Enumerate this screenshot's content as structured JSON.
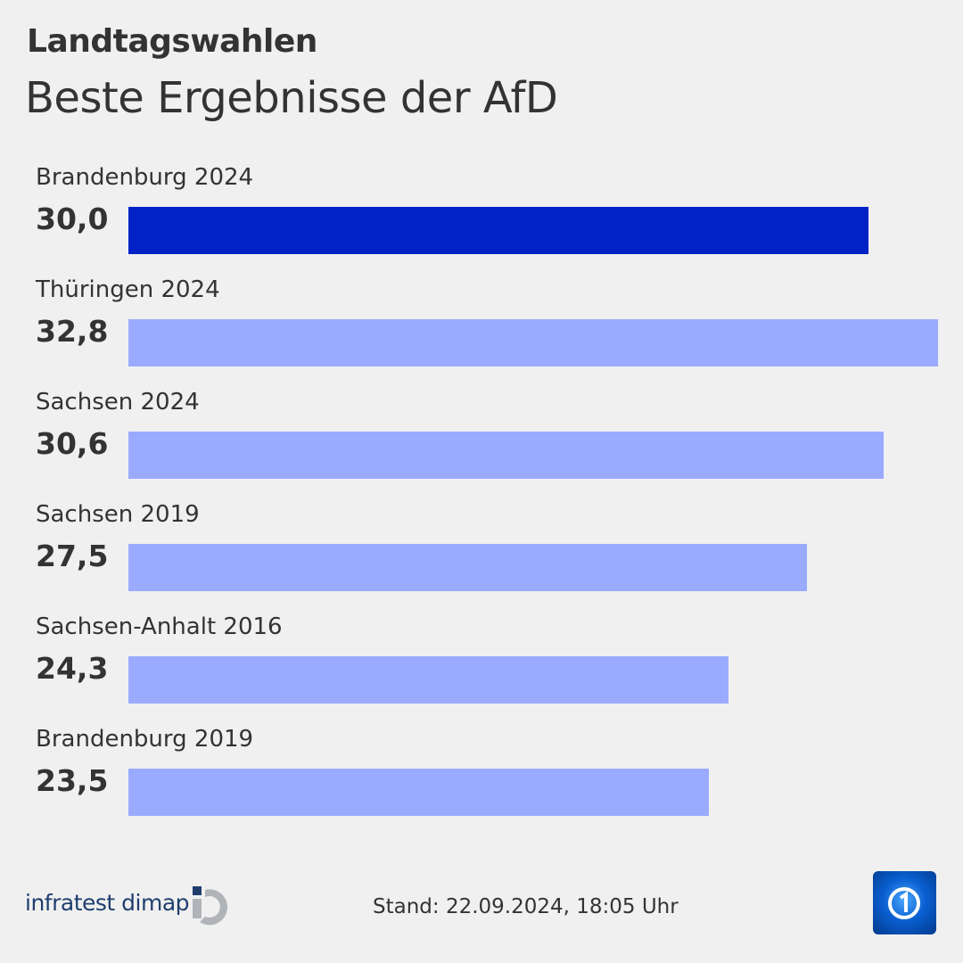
{
  "header": {
    "kicker": "Landtagswahlen",
    "title": "Beste Ergebnisse der AfD"
  },
  "chart_data": {
    "type": "bar",
    "orientation": "horizontal",
    "categories": [
      "Brandenburg 2024",
      "Thüringen 2024",
      "Sachsen 2024",
      "Sachsen 2019",
      "Sachsen-Anhalt 2016",
      "Brandenburg 2019"
    ],
    "values": [
      30.0,
      32.8,
      30.6,
      27.5,
      24.3,
      23.5
    ],
    "value_labels": [
      "30,0",
      "32,8",
      "30,6",
      "27,5",
      "24,3",
      "23,5"
    ],
    "highlight_index": 0,
    "colors": {
      "highlight": "#0022c7",
      "default": "#9aabff"
    },
    "xlim": [
      0,
      32.8
    ],
    "grid": false
  },
  "footer": {
    "brand": "infratest dimap",
    "stand": "Stand:  22.09.2024, 18:05 Uhr",
    "logo_icon": "tagesschau-logo"
  }
}
